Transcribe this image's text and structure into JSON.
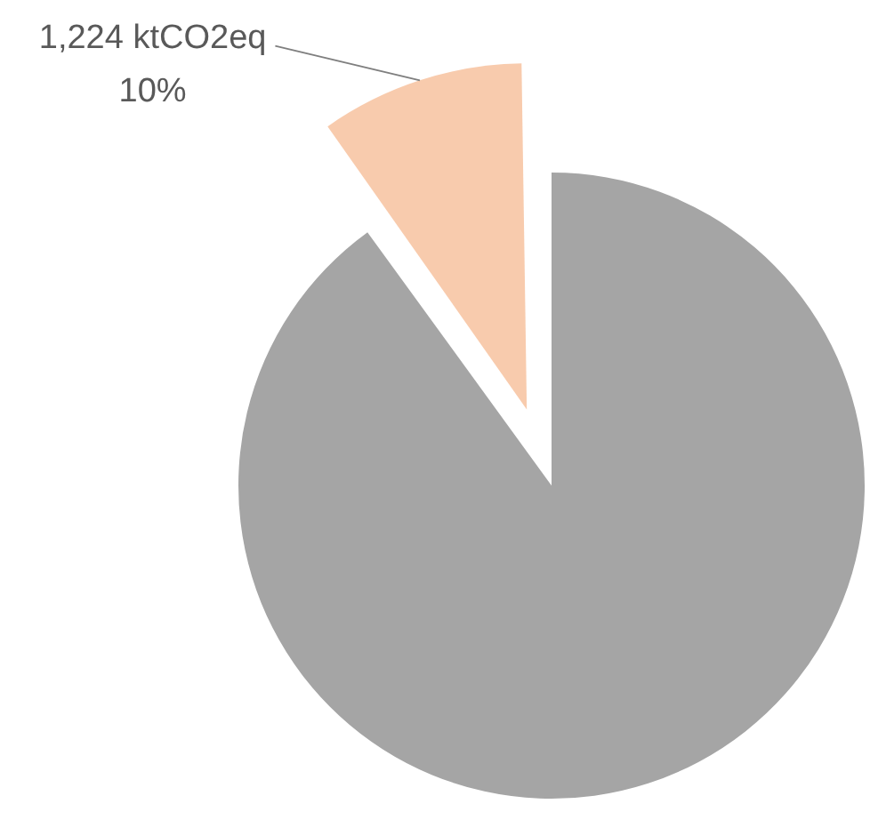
{
  "chart_data": {
    "type": "pie",
    "categories": [
      null,
      null
    ],
    "values": [
      90,
      10
    ],
    "colors": [
      "#a5a5a5",
      "#f8cbad"
    ],
    "value_labels": [
      null,
      "1,224 ktCO2eq\n10%"
    ]
  }
}
